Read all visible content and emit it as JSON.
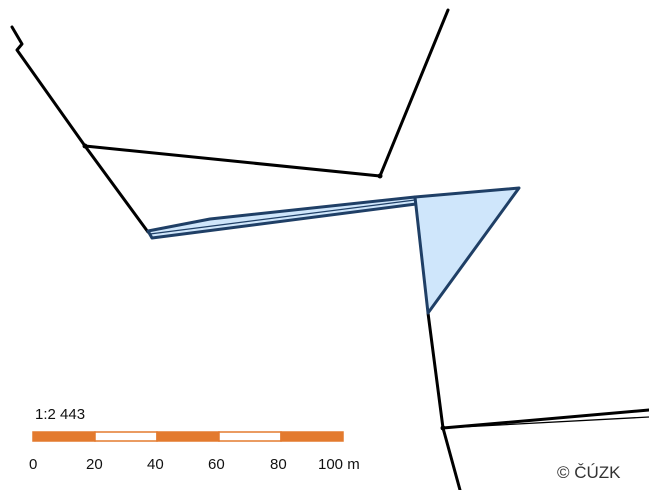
{
  "scale": {
    "ratio_label": "1:2 443",
    "tick_labels": [
      "0",
      "20",
      "40",
      "60",
      "80",
      "100 m"
    ],
    "segment_colors": [
      "#e37a2e",
      "#ffffff",
      "#e37a2e",
      "#ffffff",
      "#e37a2e"
    ]
  },
  "copyright": "© ČÚZK",
  "colors": {
    "parcel_line": "#000000",
    "highlight_fill": "#cfe6fb",
    "highlight_stroke": "#1f3f66",
    "background": "#ffffff"
  }
}
